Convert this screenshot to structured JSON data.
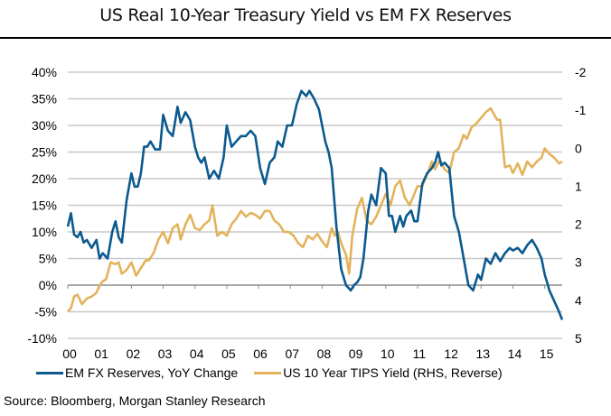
{
  "chart_data": {
    "type": "line",
    "title": "US Real 10-Year Treasury Yield vs EM FX Reserves",
    "xlabel": "",
    "ylabel": "",
    "x_tick_labels": [
      "00",
      "01",
      "02",
      "03",
      "04",
      "05",
      "06",
      "07",
      "08",
      "09",
      "10",
      "11",
      "12",
      "13",
      "14",
      "15"
    ],
    "x_range": [
      2000,
      2015.55
    ],
    "left_axis": {
      "ylim": [
        -10,
        40
      ],
      "ticks": [
        40,
        35,
        30,
        25,
        20,
        15,
        10,
        5,
        0,
        -5,
        -10
      ],
      "tick_labels": [
        "40%",
        "35%",
        "30%",
        "25%",
        "20%",
        "15%",
        "10%",
        "5%",
        "0%",
        "-5%",
        "-10%"
      ]
    },
    "right_axis": {
      "ylim": [
        -2,
        5
      ],
      "reversed": true,
      "ticks": [
        -2,
        -1,
        0,
        1,
        2,
        3,
        4,
        5
      ],
      "tick_labels": [
        "-2",
        "-1",
        "0",
        "1",
        "2",
        "3",
        "4",
        "5"
      ]
    },
    "grid": true,
    "legend_placement": "bottom",
    "series": [
      {
        "name": "EM FX Reserves, YoY Change",
        "axis": "left",
        "color": "#0b5a8f",
        "x": [
          2000.0,
          2000.1,
          2000.2,
          2000.3,
          2000.4,
          2000.5,
          2000.6,
          2000.75,
          2000.9,
          2001.0,
          2001.1,
          2001.25,
          2001.4,
          2001.5,
          2001.6,
          2001.7,
          2001.85,
          2002.0,
          2002.1,
          2002.2,
          2002.3,
          2002.4,
          2002.5,
          2002.6,
          2002.75,
          2002.9,
          2003.0,
          2003.15,
          2003.3,
          2003.45,
          2003.55,
          2003.7,
          2003.85,
          2004.0,
          2004.1,
          2004.2,
          2004.3,
          2004.45,
          2004.6,
          2004.75,
          2004.9,
          2005.0,
          2005.15,
          2005.3,
          2005.45,
          2005.6,
          2005.75,
          2005.9,
          2006.05,
          2006.2,
          2006.35,
          2006.5,
          2006.6,
          2006.75,
          2006.9,
          2007.05,
          2007.2,
          2007.35,
          2007.5,
          2007.6,
          2007.75,
          2007.9,
          2008.0,
          2008.1,
          2008.2,
          2008.3,
          2008.45,
          2008.6,
          2008.75,
          2008.9,
          2009.0,
          2009.1,
          2009.2,
          2009.3,
          2009.45,
          2009.55,
          2009.7,
          2009.85,
          2010.0,
          2010.1,
          2010.2,
          2010.3,
          2010.45,
          2010.55,
          2010.65,
          2010.8,
          2010.9,
          2011.0,
          2011.15,
          2011.3,
          2011.45,
          2011.55,
          2011.65,
          2011.75,
          2011.85,
          2012.0,
          2012.15,
          2012.3,
          2012.45,
          2012.6,
          2012.75,
          2012.9,
          2013.0,
          2013.15,
          2013.3,
          2013.45,
          2013.6,
          2013.75,
          2013.9,
          2014.0,
          2014.15,
          2014.3,
          2014.45,
          2014.6,
          2014.75,
          2014.9,
          2015.0,
          2015.15,
          2015.3,
          2015.45,
          2015.55
        ],
        "values": [
          11,
          13.5,
          9.5,
          9,
          10,
          8,
          8.5,
          7,
          8.5,
          5,
          6,
          5,
          10,
          12,
          9,
          8,
          16,
          21,
          18.5,
          18.5,
          21,
          26,
          26,
          27,
          25.5,
          25.5,
          32,
          29,
          28,
          33.5,
          30.5,
          32.5,
          31,
          26,
          24,
          23,
          24,
          20,
          21.5,
          20,
          24,
          30,
          26,
          27,
          28,
          28,
          29,
          28,
          22,
          19,
          23,
          24,
          27,
          26,
          30,
          30,
          34,
          36.5,
          35.5,
          36.5,
          35,
          33,
          30,
          27,
          25,
          22,
          11,
          3,
          0,
          -1,
          0,
          0.5,
          1.5,
          5,
          14,
          17,
          15,
          22,
          21,
          13,
          13,
          10,
          13,
          11,
          13,
          14,
          12,
          12,
          19,
          21,
          22,
          23,
          25,
          22.5,
          23,
          22,
          13,
          10,
          5,
          0,
          -1,
          2,
          1,
          5,
          4,
          6,
          4.5,
          6,
          7,
          6.5,
          7,
          6,
          7.5,
          8.5,
          7,
          5,
          2,
          -1,
          -3,
          -5,
          -6.5
        ]
      },
      {
        "name": "US 10 Year TIPS Yield (RHS, Reverse)",
        "axis": "right",
        "color": "#e3b35c",
        "x": [
          2000.0,
          2000.1,
          2000.2,
          2000.3,
          2000.45,
          2000.6,
          2000.75,
          2000.9,
          2001.0,
          2001.1,
          2001.2,
          2001.35,
          2001.5,
          2001.6,
          2001.7,
          2001.85,
          2002.0,
          2002.15,
          2002.3,
          2002.45,
          2002.55,
          2002.7,
          2002.85,
          2003.0,
          2003.15,
          2003.3,
          2003.45,
          2003.55,
          2003.7,
          2003.85,
          2004.0,
          2004.15,
          2004.3,
          2004.45,
          2004.55,
          2004.7,
          2004.85,
          2005.0,
          2005.15,
          2005.3,
          2005.45,
          2005.6,
          2005.75,
          2005.9,
          2006.05,
          2006.2,
          2006.35,
          2006.5,
          2006.65,
          2006.8,
          2006.95,
          2007.1,
          2007.25,
          2007.4,
          2007.55,
          2007.7,
          2007.85,
          2008.0,
          2008.15,
          2008.3,
          2008.4,
          2008.5,
          2008.6,
          2008.75,
          2008.85,
          2008.95,
          2009.1,
          2009.25,
          2009.4,
          2009.55,
          2009.7,
          2009.85,
          2010.0,
          2010.15,
          2010.3,
          2010.45,
          2010.6,
          2010.75,
          2010.9,
          2011.0,
          2011.15,
          2011.3,
          2011.45,
          2011.55,
          2011.7,
          2011.85,
          2012.0,
          2012.15,
          2012.3,
          2012.45,
          2012.55,
          2012.7,
          2012.85,
          2013.0,
          2013.15,
          2013.3,
          2013.4,
          2013.5,
          2013.6,
          2013.75,
          2013.9,
          2014.0,
          2014.15,
          2014.3,
          2014.45,
          2014.6,
          2014.75,
          2014.9,
          2015.0,
          2015.15,
          2015.3,
          2015.45,
          2015.55
        ],
        "values": [
          4.3,
          4.2,
          3.9,
          3.85,
          4.1,
          3.95,
          3.9,
          3.8,
          3.6,
          3.5,
          3.45,
          3.0,
          3.05,
          3.0,
          3.3,
          3.2,
          3.0,
          3.35,
          3.15,
          2.95,
          2.95,
          2.75,
          2.4,
          2.2,
          2.5,
          2.1,
          2.0,
          2.4,
          2.0,
          1.75,
          2.1,
          2.15,
          2.0,
          1.9,
          1.5,
          2.3,
          2.2,
          2.3,
          2.0,
          1.85,
          1.65,
          1.8,
          1.7,
          1.75,
          1.85,
          1.65,
          1.65,
          1.9,
          2.0,
          2.2,
          2.2,
          2.3,
          2.5,
          2.6,
          2.3,
          2.4,
          2.25,
          2.45,
          2.6,
          2.1,
          2.3,
          2.2,
          2.5,
          2.8,
          3.3,
          2.3,
          1.6,
          1.3,
          1.9,
          2.0,
          1.8,
          1.5,
          1.2,
          1.5,
          1.0,
          0.85,
          1.3,
          1.5,
          1.2,
          1.0,
          1.0,
          0.7,
          0.35,
          0.55,
          0.3,
          0.55,
          0.65,
          0.1,
          0.0,
          -0.35,
          -0.25,
          -0.55,
          -0.65,
          -0.8,
          -0.95,
          -1.05,
          -0.9,
          -0.75,
          -0.75,
          0.5,
          0.45,
          0.65,
          0.4,
          0.7,
          0.35,
          0.5,
          0.35,
          0.25,
          0.0,
          0.15,
          0.25,
          0.4,
          0.35
        ]
      }
    ]
  },
  "legend": {
    "items": [
      {
        "label": "EM FX Reserves, YoY Change",
        "color": "#0b5a8f"
      },
      {
        "label": "US 10 Year TIPS Yield (RHS, Reverse)",
        "color": "#e3b35c"
      }
    ]
  },
  "source": "Source: Bloomberg, Morgan Stanley Research"
}
